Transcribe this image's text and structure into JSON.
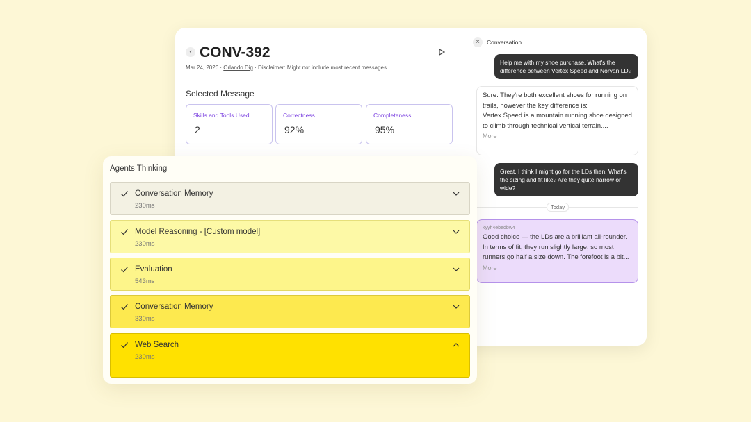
{
  "header": {
    "title": "CONV-392",
    "date": "Mar 24, 2026",
    "author": "Orlando Dig",
    "disclaimer": "Disclaimer: Might not include most recent messages"
  },
  "selected_message": {
    "title": "Selected Message",
    "metrics": [
      {
        "label": "Skills and Tools Used",
        "value": "2"
      },
      {
        "label": "Correctness",
        "value": "92%"
      },
      {
        "label": "Completeness",
        "value": "95%"
      }
    ]
  },
  "agents": {
    "title": "Agents Thinking",
    "steps": [
      {
        "name": "Conversation Memory",
        "duration": "230ms"
      },
      {
        "name": "Model Reasoning - [Custom model]",
        "duration": "230ms"
      },
      {
        "name": "Evaluation",
        "duration": "543ms"
      },
      {
        "name": "Conversation Memory",
        "duration": "330ms"
      },
      {
        "name": "Web Search",
        "duration": "230ms"
      }
    ]
  },
  "conversation": {
    "title": "Conversation",
    "user_1": "Help me with my shoe purchase. What's the difference between Vertex Speed and Norvan LD?",
    "assistant_1": {
      "paragraphs": [
        "Sure. They're both excellent shoes for running on trails, however the key difference is:",
        "Vertex Speed is a mountain running shoe designed to climb through technical vertical terrain...."
      ],
      "more": "More"
    },
    "user_2": "Great, I think I might go for the LDs then. What's the sizing and fit like? Are they quite narrow or wide?",
    "divider": "Today",
    "assistant_2": {
      "id": "kyyh4ebedbw4",
      "text": "Good choice — the LDs are a brilliant all-rounder. In terms of fit, they run slightly large, so most runners go half a size down. The forefoot is a bit...",
      "more": "More"
    }
  }
}
